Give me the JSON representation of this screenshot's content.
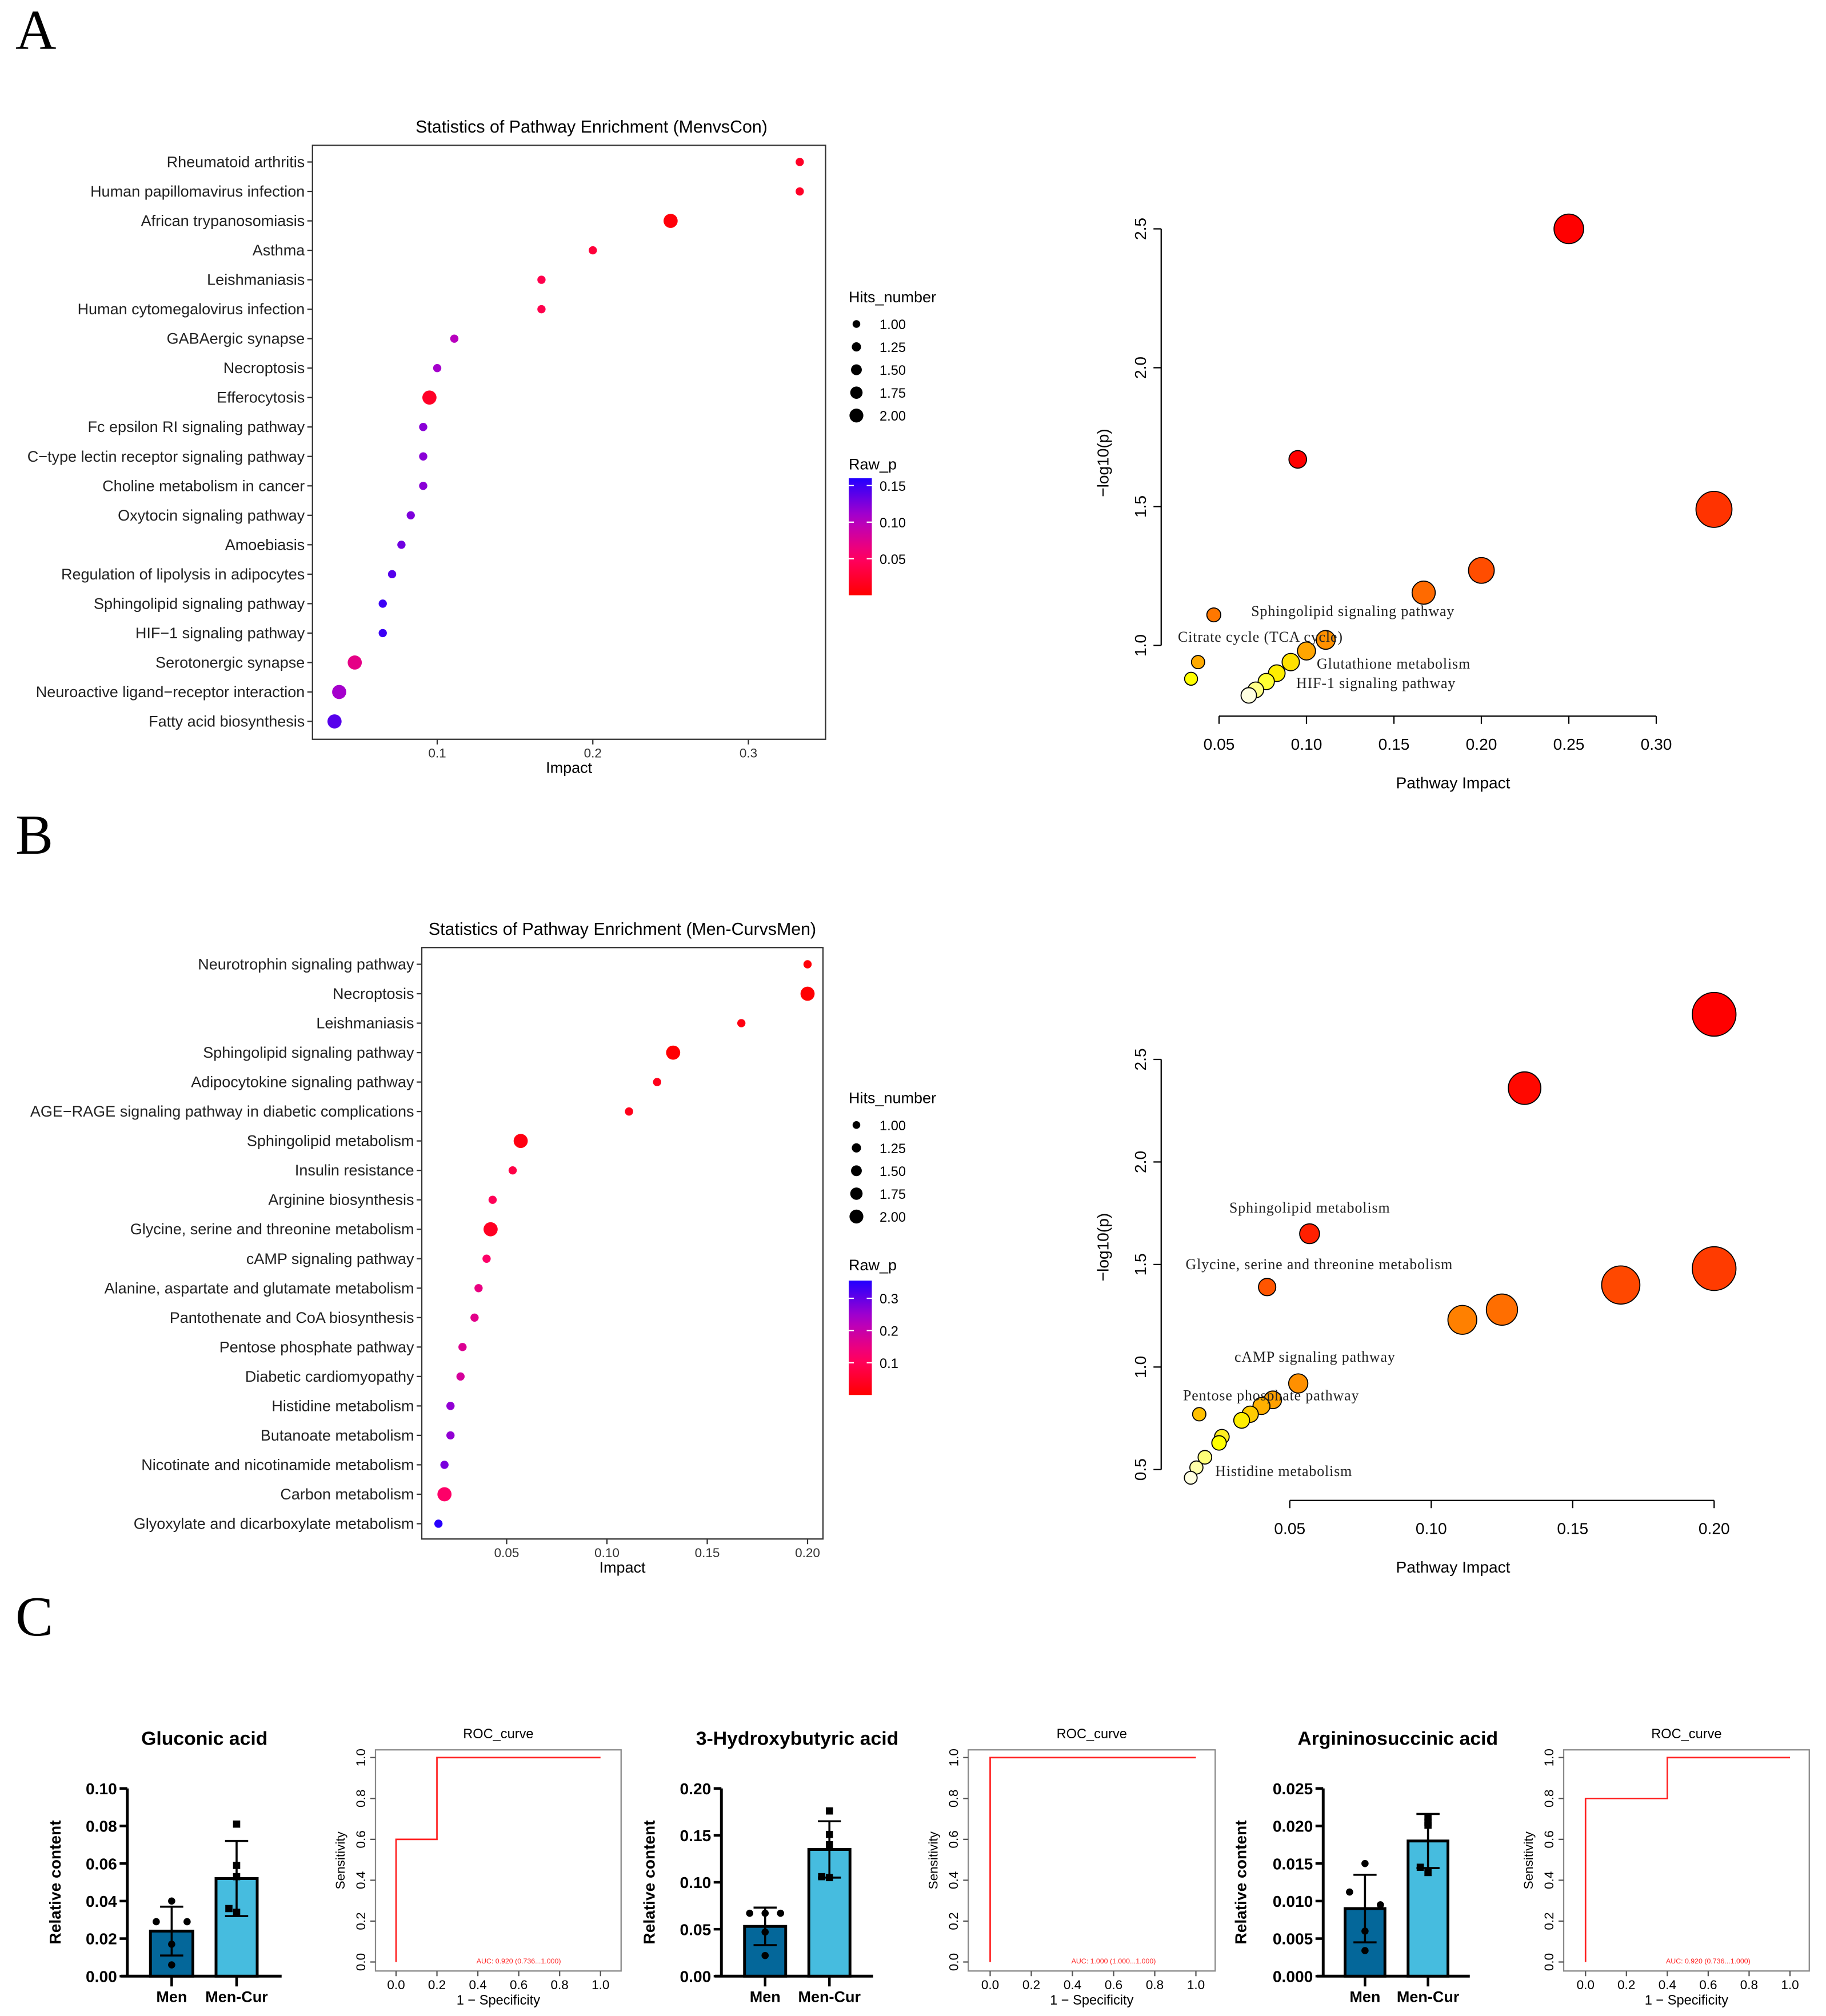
{
  "panel_labels": [
    "A",
    "B",
    "C"
  ],
  "chart_data": [
    {
      "type": "scatter",
      "kind": "dotplot",
      "title": "Statistics of Pathway Enrichment (MenvsCon)",
      "xlabel": "Impact",
      "xticks": [
        0.1,
        0.2,
        0.3
      ],
      "xtick_labels": [
        "0.1",
        "0.2",
        "0.3"
      ],
      "categories": [
        "Rheumatoid arthritis",
        "Human papillomavirus infection",
        "African trypanosomiasis",
        "Asthma",
        "Leishmaniasis",
        "Human cytomegalovirus infection",
        "GABAergic synapse",
        "Necroptosis",
        "Efferocytosis",
        "Fc epsilon RI signaling pathway",
        "C−type lectin receptor signaling pathway",
        "Choline metabolism in cancer",
        "Oxytocin signaling pathway",
        "Amoebiasis",
        "Regulation of lipolysis in adipocytes",
        "Sphingolipid signaling pathway",
        "HIF−1 signaling pathway",
        "Serotonergic synapse",
        "Neuroactive ligand−receptor interaction",
        "Fatty acid biosynthesis"
      ],
      "impact": [
        0.333,
        0.333,
        0.25,
        0.2,
        0.167,
        0.167,
        0.111,
        0.1,
        0.095,
        0.091,
        0.091,
        0.091,
        0.083,
        0.077,
        0.071,
        0.065,
        0.065,
        0.047,
        0.037,
        0.034
      ],
      "hits": [
        1,
        1,
        2,
        1,
        1,
        1,
        1,
        1,
        2,
        1,
        1,
        1,
        1,
        1,
        1,
        1,
        1,
        2,
        2,
        2
      ],
      "raw_p": [
        0.02,
        0.02,
        0.005,
        0.03,
        0.04,
        0.04,
        0.1,
        0.11,
        0.02,
        0.12,
        0.12,
        0.12,
        0.125,
        0.13,
        0.14,
        0.15,
        0.15,
        0.07,
        0.11,
        0.14
      ],
      "legend": {
        "size_title": "Hits_number",
        "size_labels": [
          "1.00",
          "1.25",
          "1.50",
          "1.75",
          "2.00"
        ],
        "color_title": "Raw_p",
        "color_ticks": [
          0.15,
          0.1,
          0.05
        ],
        "color_tick_labels": [
          "0.15",
          "0.10",
          "0.05"
        ],
        "color_range": [
          0,
          0.16
        ],
        "placement": "right"
      }
    },
    {
      "type": "scatter",
      "kind": "bubble",
      "xlabel": "Pathway Impact",
      "ylabel": "−log10(p)",
      "xticks": [
        0.05,
        0.1,
        0.15,
        0.2,
        0.25,
        0.3
      ],
      "xtick_labels": [
        "0.05",
        "0.10",
        "0.15",
        "0.20",
        "0.25",
        "0.30"
      ],
      "yticks": [
        1.0,
        1.5,
        2.0,
        2.5
      ],
      "ytick_labels": [
        "1.0",
        "1.5",
        "2.0",
        "2.5"
      ],
      "points": [
        {
          "x": 0.25,
          "y": 2.5,
          "color": "#ff0000"
        },
        {
          "x": 0.095,
          "y": 1.67,
          "color": "#ff0000"
        },
        {
          "x": 0.333,
          "y": 1.49,
          "color": "#ff3300"
        },
        {
          "x": 0.2,
          "y": 1.27,
          "color": "#ff4d00"
        },
        {
          "x": 0.167,
          "y": 1.19,
          "color": "#ff6a00"
        },
        {
          "x": 0.047,
          "y": 1.11,
          "color": "#ff7700"
        },
        {
          "x": 0.111,
          "y": 1.02,
          "color": "#ff9000"
        },
        {
          "x": 0.1,
          "y": 0.98,
          "color": "#ffa500"
        },
        {
          "x": 0.038,
          "y": 0.94,
          "color": "#ffaa00"
        },
        {
          "x": 0.091,
          "y": 0.94,
          "color": "#ffe000"
        },
        {
          "x": 0.083,
          "y": 0.9,
          "color": "#ffee00"
        },
        {
          "x": 0.034,
          "y": 0.88,
          "color": "#ffff00"
        },
        {
          "x": 0.077,
          "y": 0.87,
          "color": "#ffff33"
        },
        {
          "x": 0.071,
          "y": 0.84,
          "color": "#ffff88"
        },
        {
          "x": 0.067,
          "y": 0.82,
          "color": "#ffffe0"
        }
      ],
      "annotations": [
        "Sphingolipid signaling pathway",
        "Citrate cycle (TCA cycle)",
        "Glutathione metabolism",
        "HIF-1 signaling pathway"
      ]
    },
    {
      "type": "scatter",
      "kind": "dotplot",
      "title": "Statistics of Pathway Enrichment (Men-CurvsMen)",
      "xlabel": "Impact",
      "xticks": [
        0.05,
        0.1,
        0.15,
        0.2
      ],
      "xtick_labels": [
        "0.05",
        "0.10",
        "0.15",
        "0.20"
      ],
      "categories": [
        "Neurotrophin signaling pathway",
        "Necroptosis",
        "Leishmaniasis",
        "Sphingolipid signaling pathway",
        "Adipocytokine signaling pathway",
        "AGE−RAGE signaling pathway in diabetic complications",
        "Sphingolipid metabolism",
        "Insulin resistance",
        "Arginine biosynthesis",
        "Glycine, serine and threonine metabolism",
        "cAMP signaling pathway",
        "Alanine, aspartate and glutamate metabolism",
        "Pantothenate and CoA biosynthesis",
        "Pentose phosphate pathway",
        "Diabetic cardiomyopathy",
        "Histidine metabolism",
        "Butanoate metabolism",
        "Nicotinate and nicotinamide metabolism",
        "Carbon metabolism",
        "Glyoxylate and dicarboxylate metabolism"
      ],
      "impact": [
        0.2,
        0.2,
        0.167,
        0.133,
        0.125,
        0.111,
        0.057,
        0.053,
        0.043,
        0.042,
        0.04,
        0.036,
        0.034,
        0.028,
        0.027,
        0.022,
        0.022,
        0.019,
        0.019,
        0.016
      ],
      "hits": [
        1,
        2,
        1,
        2,
        1,
        1,
        2,
        1,
        1,
        2,
        1,
        1,
        1,
        1,
        1,
        1,
        1,
        1,
        2,
        1
      ],
      "raw_p": [
        0.01,
        0.002,
        0.02,
        0.004,
        0.03,
        0.03,
        0.02,
        0.08,
        0.1,
        0.04,
        0.12,
        0.15,
        0.16,
        0.17,
        0.18,
        0.26,
        0.26,
        0.28,
        0.12,
        0.35
      ],
      "legend": {
        "size_title": "Hits_number",
        "size_labels": [
          "1.00",
          "1.25",
          "1.50",
          "1.75",
          "2.00"
        ],
        "color_title": "Raw_p",
        "color_ticks": [
          0.3,
          0.2,
          0.1
        ],
        "color_tick_labels": [
          "0.3",
          "0.2",
          "0.1"
        ],
        "color_range": [
          0,
          0.355
        ],
        "placement": "right"
      }
    },
    {
      "type": "scatter",
      "kind": "bubble",
      "xlabel": "Pathway Impact",
      "ylabel": "−log10(p)",
      "xticks": [
        0.05,
        0.1,
        0.15,
        0.2
      ],
      "xtick_labels": [
        "0.05",
        "0.10",
        "0.15",
        "0.20"
      ],
      "yticks": [
        0.5,
        1.0,
        1.5,
        2.0,
        2.5
      ],
      "ytick_labels": [
        "0.5",
        "1.0",
        "1.5",
        "2.0",
        "2.5"
      ],
      "points": [
        {
          "x": 0.2,
          "y": 2.72,
          "color": "#ff0000"
        },
        {
          "x": 0.133,
          "y": 2.36,
          "color": "#ff0800"
        },
        {
          "x": 0.057,
          "y": 1.65,
          "color": "#ff2000"
        },
        {
          "x": 0.2,
          "y": 1.48,
          "color": "#ff3b00"
        },
        {
          "x": 0.167,
          "y": 1.4,
          "color": "#ff4800"
        },
        {
          "x": 0.042,
          "y": 1.39,
          "color": "#ff5500"
        },
        {
          "x": 0.125,
          "y": 1.28,
          "color": "#ff6e00"
        },
        {
          "x": 0.111,
          "y": 1.23,
          "color": "#ff8000"
        },
        {
          "x": 0.053,
          "y": 0.92,
          "color": "#ff9000"
        },
        {
          "x": 0.044,
          "y": 0.84,
          "color": "#ffa000"
        },
        {
          "x": 0.04,
          "y": 0.81,
          "color": "#ffb000"
        },
        {
          "x": 0.018,
          "y": 0.77,
          "color": "#ffc000"
        },
        {
          "x": 0.036,
          "y": 0.77,
          "color": "#ffcc00"
        },
        {
          "x": 0.033,
          "y": 0.74,
          "color": "#ffee00"
        },
        {
          "x": 0.026,
          "y": 0.66,
          "color": "#ffee22"
        },
        {
          "x": 0.025,
          "y": 0.63,
          "color": "#ffff00"
        },
        {
          "x": 0.02,
          "y": 0.56,
          "color": "#ffff77"
        },
        {
          "x": 0.017,
          "y": 0.51,
          "color": "#ffffaa"
        },
        {
          "x": 0.015,
          "y": 0.46,
          "color": "#ffffe0"
        }
      ],
      "annotations": [
        "Sphingolipid metabolism",
        "Glycine, serine and threonine metabolism",
        "cAMP signaling pathway",
        "Pentose phosphate pathway",
        "Histidine metabolism"
      ]
    },
    {
      "type": "bar",
      "kind": "barpoints",
      "title": "Gluconic acid",
      "ylabel": "Relative content",
      "categories": [
        "Men",
        "Men-Cur"
      ],
      "ylim": [
        0,
        0.1
      ],
      "yticks": [
        0,
        0.02,
        0.04,
        0.06,
        0.08,
        0.1
      ],
      "ytick_labels": [
        "0.00",
        "0.02",
        "0.04",
        "0.06",
        "0.08",
        "0.10"
      ],
      "means": [
        0.024,
        0.052
      ],
      "sd": [
        0.013,
        0.02
      ],
      "points": [
        [
          0.04,
          0.029,
          0.029,
          0.017,
          0.006
        ],
        [
          0.081,
          0.059,
          0.053,
          0.036,
          0.034
        ]
      ],
      "colors": [
        "#04679a",
        "#46bcdf"
      ]
    },
    {
      "type": "line",
      "kind": "roc",
      "title": "ROC_curve",
      "xlabel": "1 − Specificity",
      "ylabel": "Sensitivity",
      "xticks": [
        0,
        0.2,
        0.4,
        0.6,
        0.8,
        1.0
      ],
      "xtick_labels": [
        "0.0",
        "0.2",
        "0.4",
        "0.6",
        "0.8",
        "1.0"
      ],
      "yticks": [
        0,
        0.2,
        0.4,
        0.6,
        0.8,
        1.0
      ],
      "ytick_labels": [
        "0.0",
        "0.2",
        "0.4",
        "0.6",
        "0.8",
        "1.0"
      ],
      "curve": [
        [
          0,
          0
        ],
        [
          0,
          0.6
        ],
        [
          0.2,
          0.6
        ],
        [
          0.2,
          1
        ],
        [
          1,
          1
        ]
      ],
      "auc_text": "AUC: 0.920 (0.736...1.000)"
    },
    {
      "type": "bar",
      "kind": "barpoints",
      "title": "3-Hydroxybutyric acid",
      "ylabel": "Relative content",
      "categories": [
        "Men",
        "Men-Cur"
      ],
      "ylim": [
        0,
        0.2
      ],
      "yticks": [
        0,
        0.05,
        0.1,
        0.15,
        0.2
      ],
      "ytick_labels": [
        "0.00",
        "0.05",
        "0.10",
        "0.15",
        "0.20"
      ],
      "means": [
        0.053,
        0.135
      ],
      "sd": [
        0.02,
        0.03
      ],
      "points": [
        [
          0.067,
          0.067,
          0.067,
          0.047,
          0.022
        ],
        [
          0.176,
          0.151,
          0.14,
          0.106,
          0.105
        ]
      ],
      "colors": [
        "#04679a",
        "#46bcdf"
      ]
    },
    {
      "type": "line",
      "kind": "roc",
      "title": "ROC_curve",
      "xlabel": "1 − Specificity",
      "ylabel": "Sensitivity",
      "xticks": [
        0,
        0.2,
        0.4,
        0.6,
        0.8,
        1.0
      ],
      "xtick_labels": [
        "0.0",
        "0.2",
        "0.4",
        "0.6",
        "0.8",
        "1.0"
      ],
      "yticks": [
        0,
        0.2,
        0.4,
        0.6,
        0.8,
        1.0
      ],
      "ytick_labels": [
        "0.0",
        "0.2",
        "0.4",
        "0.6",
        "0.8",
        "1.0"
      ],
      "curve": [
        [
          0,
          0
        ],
        [
          0,
          1
        ],
        [
          1,
          1
        ]
      ],
      "auc_text": "AUC: 1.000 (1.000...1.000)"
    },
    {
      "type": "bar",
      "kind": "barpoints",
      "title": "Argininosuccinic acid",
      "ylabel": "Relative content",
      "categories": [
        "Men",
        "Men-Cur"
      ],
      "ylim": [
        0,
        0.025
      ],
      "yticks": [
        0,
        0.005,
        0.01,
        0.015,
        0.02,
        0.025
      ],
      "ytick_labels": [
        "0.000",
        "0.005",
        "0.010",
        "0.015",
        "0.020",
        "0.025"
      ],
      "means": [
        0.009,
        0.018
      ],
      "sd": [
        0.0045,
        0.0036
      ],
      "points": [
        [
          0.015,
          0.0112,
          0.0095,
          0.006,
          0.0034
        ],
        [
          0.0212,
          0.0205,
          0.0201,
          0.0145,
          0.0138
        ]
      ],
      "colors": [
        "#04679a",
        "#46bcdf"
      ]
    },
    {
      "type": "line",
      "kind": "roc",
      "title": "ROC_curve",
      "xlabel": "1 − Specificity",
      "ylabel": "Sensitivity",
      "xticks": [
        0,
        0.2,
        0.4,
        0.6,
        0.8,
        1.0
      ],
      "xtick_labels": [
        "0.0",
        "0.2",
        "0.4",
        "0.6",
        "0.8",
        "1.0"
      ],
      "yticks": [
        0,
        0.2,
        0.4,
        0.6,
        0.8,
        1.0
      ],
      "ytick_labels": [
        "0.0",
        "0.2",
        "0.4",
        "0.6",
        "0.8",
        "1.0"
      ],
      "curve": [
        [
          0,
          0
        ],
        [
          0,
          0.8
        ],
        [
          0.4,
          0.8
        ],
        [
          0.4,
          1
        ],
        [
          1,
          1
        ]
      ],
      "auc_text": "AUC: 0.920 (0.736...1.000)"
    }
  ]
}
